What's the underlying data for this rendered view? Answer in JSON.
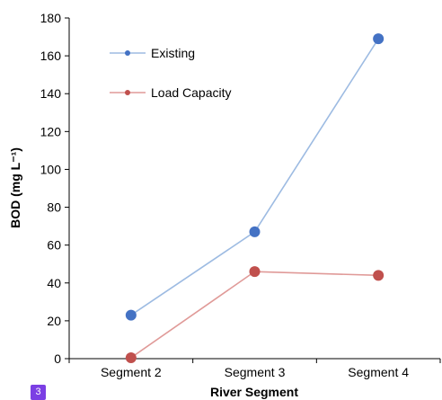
{
  "chart_data": {
    "type": "line",
    "categories": [
      "Segment 2",
      "Segment 3",
      "Segment 4"
    ],
    "series": [
      {
        "name": "Existing",
        "values": [
          23,
          67,
          169
        ],
        "color": "#4472c4",
        "line_color": "#9dbbe2"
      },
      {
        "name": "Load Capacity",
        "values": [
          0.5,
          46,
          44
        ],
        "color": "#c0504d",
        "line_color": "#e09a98"
      }
    ],
    "xlabel": "River Segment",
    "ylabel": "BOD (mg L⁻¹)",
    "ylim": [
      0,
      180
    ],
    "yticks": [
      "0",
      "20",
      "40",
      "60",
      "80",
      "100",
      "120",
      "140",
      "160",
      "180"
    ],
    "grid": false,
    "legend_position": "top-left"
  },
  "page_badge": "3"
}
